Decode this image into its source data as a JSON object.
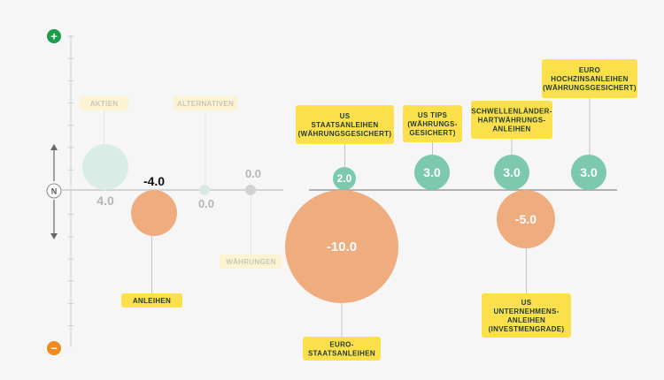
{
  "scale": {
    "plus_symbol": "+",
    "minus_symbol": "−",
    "neutral_label": "N",
    "plus_color": "#1a9e4b",
    "minus_color": "#f08a1c",
    "arrows": [
      "arrow-up-icon",
      "arrow-down-icon"
    ]
  },
  "colors": {
    "positive": "#7dc9ad",
    "negative": "#efad7f",
    "tag": "#fbe04b",
    "tag_text": "#1f3a2f",
    "faded_positive": "#d9ede6",
    "faded_tag": "#fbf3d2",
    "faded_text": "#b5b5b5"
  },
  "chart_data": {
    "type": "bubble",
    "baseline_label": "N",
    "items": [
      {
        "name": "AKTIEN",
        "value": 4.0,
        "value_label": "4.0",
        "faded": true
      },
      {
        "name": "ANLEIHEN",
        "value": -4.0,
        "value_label": "-4.0",
        "faded": false
      },
      {
        "name": "ALTERNATIVEN",
        "value": 0.0,
        "value_label": "0.0",
        "faded": true
      },
      {
        "name": "WÄHRUNGEN",
        "value": 0.0,
        "value_label": "0.0",
        "faded": true
      },
      {
        "name": "US STAATSANLEIHEN (WÄHRUNGSGESICHERT)",
        "lines": [
          "US",
          "STAATSANLEIHEN",
          "(WÄHRUNGSGESICHERT)"
        ],
        "value": 2.0,
        "value_label": "2.0",
        "faded": false
      },
      {
        "name": "EURO-STAATSANLEIHEN",
        "lines": [
          "EURO-",
          "STAATSANLEIHEN"
        ],
        "value": -10.0,
        "value_label": "-10.0",
        "faded": false
      },
      {
        "name": "US TIPS (WÄHRUNGS-GESICHERT)",
        "lines": [
          "US TIPS",
          "(WÄHRUNGS-",
          "GESICHERT)"
        ],
        "value": 3.0,
        "value_label": "3.0",
        "faded": false
      },
      {
        "name": "SCHWELLENLÄNDER-HARTWÄHRUNGS-ANLEIHEN",
        "lines": [
          "SCHWELLENLÄNDER-",
          "HARTWÄHRUNGS-",
          "ANLEIHEN"
        ],
        "value": 3.0,
        "value_label": "3.0",
        "faded": false
      },
      {
        "name": "US UNTERNEHMENS-ANLEIHEN (INVESTMENGRADE)",
        "lines": [
          "US",
          "UNTERNEHMENS-",
          "ANLEIHEN",
          "(INVESTMENGRADE)"
        ],
        "value": -5.0,
        "value_label": "-5.0",
        "faded": false
      },
      {
        "name": "EURO HOCHZINSANLEIHEN (WÄHRUNGSGESICHERT)",
        "lines": [
          "EURO",
          "HOCHZINSANLEIHEN",
          "(WÄHRUNGSGESICHERT)"
        ],
        "value": 3.0,
        "value_label": "3.0",
        "faded": false
      }
    ]
  }
}
